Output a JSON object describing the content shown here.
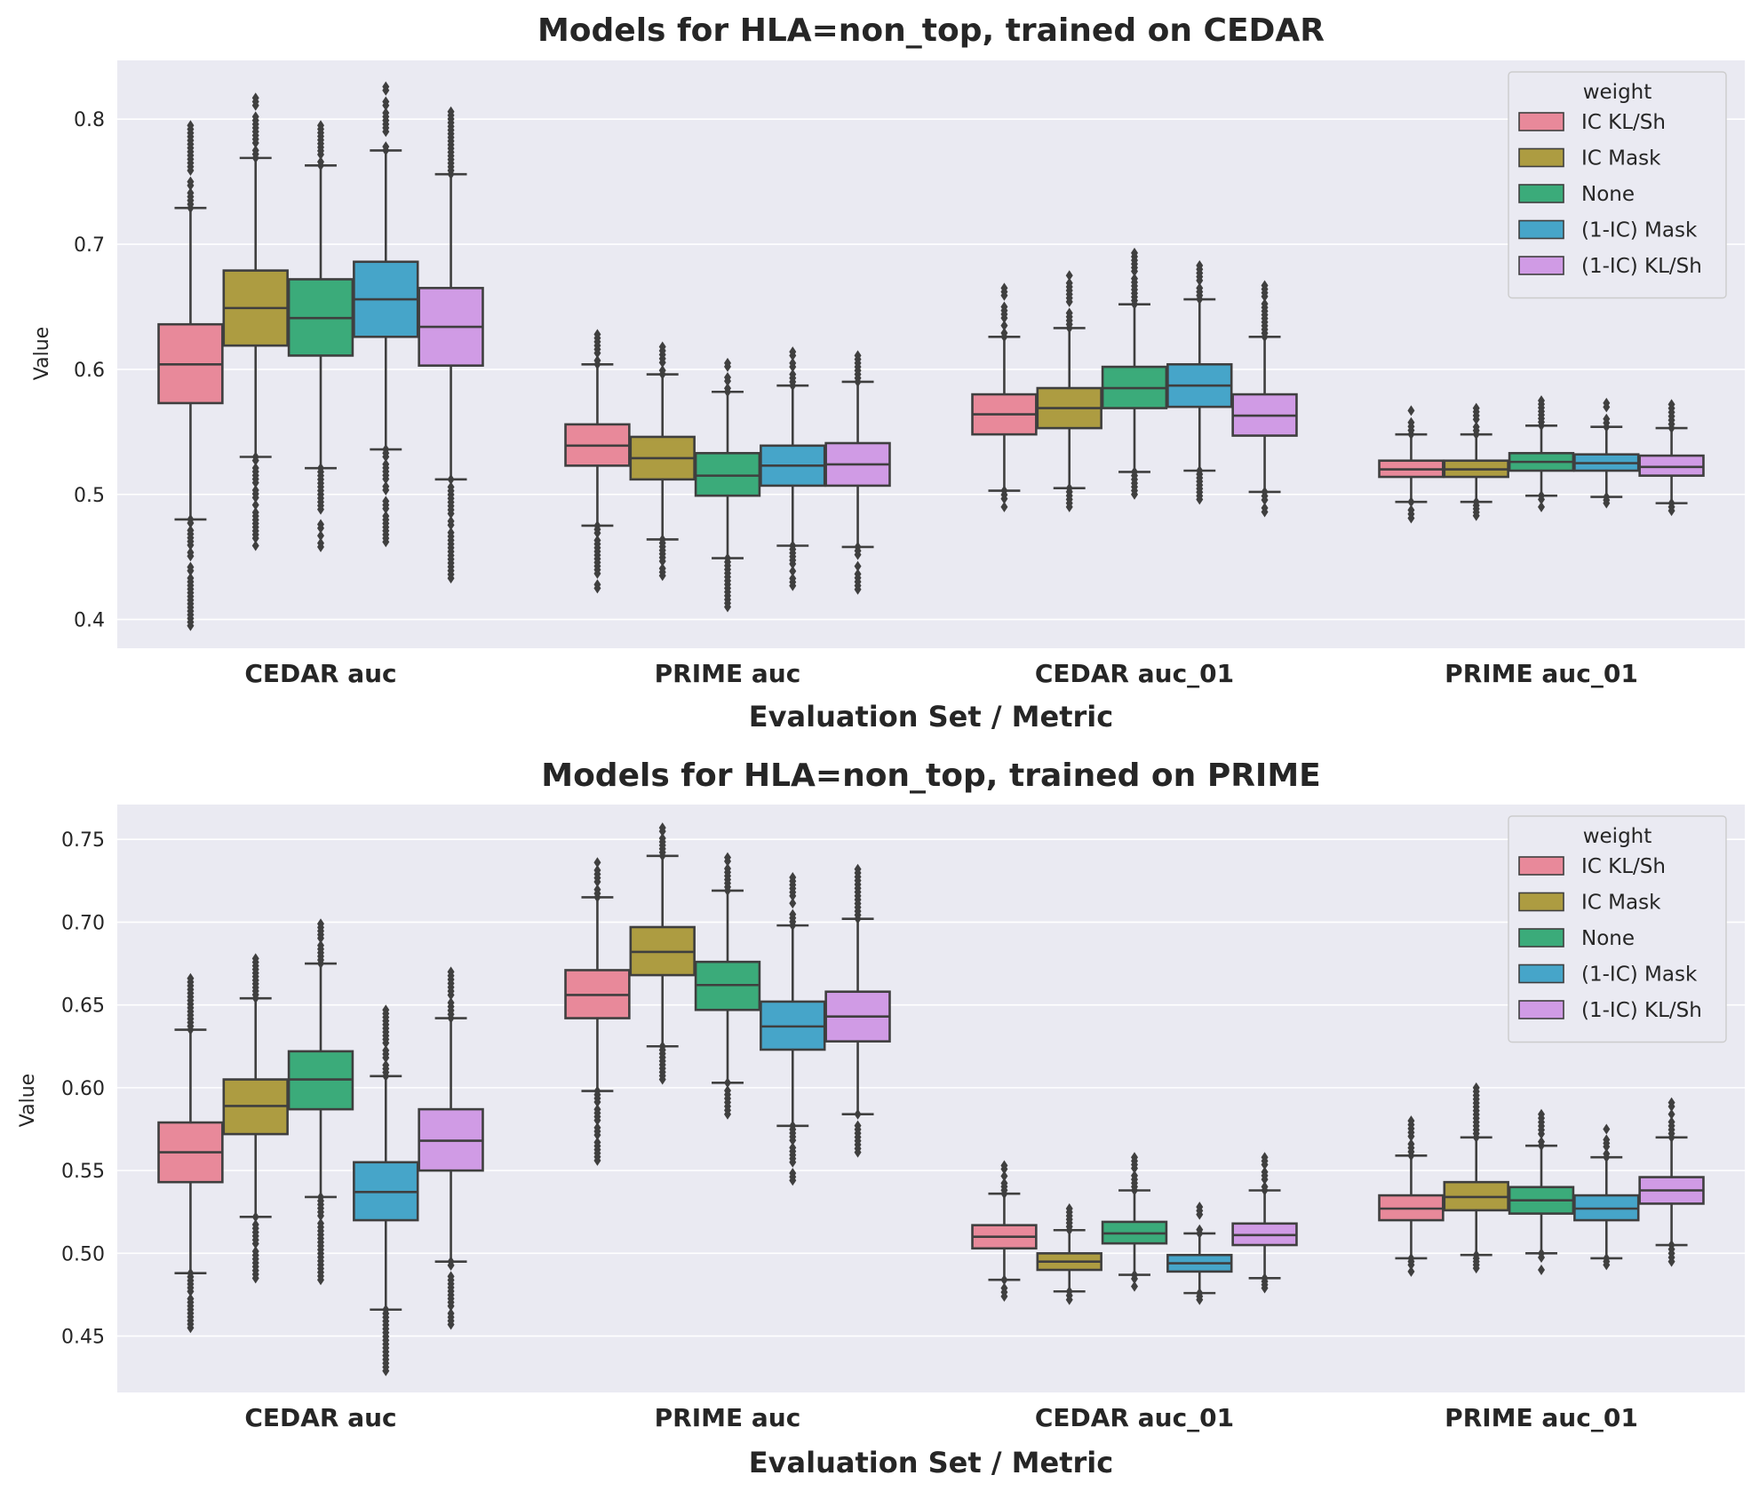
{
  "chart_data": [
    {
      "type": "box",
      "title": "Models for HLA=non_top, trained on CEDAR",
      "xlabel": "Evaluation Set / Metric",
      "ylabel": "Value",
      "ylim": [
        0.377,
        0.847
      ],
      "yticks": [
        0.4,
        0.5,
        0.6,
        0.7,
        0.8
      ],
      "ytick_labels": [
        "0.4",
        "0.5",
        "0.6",
        "0.7",
        "0.8"
      ],
      "grid": true,
      "categories": [
        "CEDAR auc",
        "PRIME auc",
        "CEDAR auc_01",
        "PRIME auc_01"
      ],
      "legend": {
        "title": "weight",
        "position": "top-right"
      },
      "series": [
        {
          "name": "IC KL/Sh",
          "color": "#e8899a",
          "boxes": [
            {
              "q1": 0.573,
              "median": 0.604,
              "q3": 0.636,
              "whisker_low": 0.48,
              "whisker_high": 0.729,
              "flier_min": 0.395,
              "flier_max": 0.795
            },
            {
              "q1": 0.523,
              "median": 0.539,
              "q3": 0.556,
              "whisker_low": 0.475,
              "whisker_high": 0.604,
              "flier_min": 0.425,
              "flier_max": 0.628
            },
            {
              "q1": 0.548,
              "median": 0.564,
              "q3": 0.58,
              "whisker_low": 0.503,
              "whisker_high": 0.626,
              "flier_min": 0.49,
              "flier_max": 0.665
            },
            {
              "q1": 0.514,
              "median": 0.52,
              "q3": 0.527,
              "whisker_low": 0.494,
              "whisker_high": 0.548,
              "flier_min": 0.481,
              "flier_max": 0.567
            }
          ]
        },
        {
          "name": "IC Mask",
          "color": "#ad9c41",
          "boxes": [
            {
              "q1": 0.619,
              "median": 0.649,
              "q3": 0.679,
              "whisker_low": 0.53,
              "whisker_high": 0.769,
              "flier_min": 0.459,
              "flier_max": 0.817
            },
            {
              "q1": 0.512,
              "median": 0.529,
              "q3": 0.546,
              "whisker_low": 0.464,
              "whisker_high": 0.596,
              "flier_min": 0.435,
              "flier_max": 0.618
            },
            {
              "q1": 0.553,
              "median": 0.569,
              "q3": 0.585,
              "whisker_low": 0.505,
              "whisker_high": 0.633,
              "flier_min": 0.49,
              "flier_max": 0.675
            },
            {
              "q1": 0.514,
              "median": 0.52,
              "q3": 0.527,
              "whisker_low": 0.494,
              "whisker_high": 0.548,
              "flier_min": 0.483,
              "flier_max": 0.569
            }
          ]
        },
        {
          "name": "None",
          "color": "#3bab7a",
          "boxes": [
            {
              "q1": 0.611,
              "median": 0.641,
              "q3": 0.672,
              "whisker_low": 0.521,
              "whisker_high": 0.763,
              "flier_min": 0.458,
              "flier_max": 0.795
            },
            {
              "q1": 0.499,
              "median": 0.515,
              "q3": 0.533,
              "whisker_low": 0.449,
              "whisker_high": 0.582,
              "flier_min": 0.41,
              "flier_max": 0.605
            },
            {
              "q1": 0.569,
              "median": 0.585,
              "q3": 0.602,
              "whisker_low": 0.518,
              "whisker_high": 0.652,
              "flier_min": 0.5,
              "flier_max": 0.693
            },
            {
              "q1": 0.519,
              "median": 0.526,
              "q3": 0.533,
              "whisker_low": 0.499,
              "whisker_high": 0.555,
              "flier_min": 0.49,
              "flier_max": 0.575
            }
          ]
        },
        {
          "name": "(1-IC) Mask",
          "color": "#46a5c9",
          "boxes": [
            {
              "q1": 0.626,
              "median": 0.656,
              "q3": 0.686,
              "whisker_low": 0.536,
              "whisker_high": 0.775,
              "flier_min": 0.462,
              "flier_max": 0.826
            },
            {
              "q1": 0.507,
              "median": 0.523,
              "q3": 0.539,
              "whisker_low": 0.459,
              "whisker_high": 0.587,
              "flier_min": 0.427,
              "flier_max": 0.614
            },
            {
              "q1": 0.57,
              "median": 0.587,
              "q3": 0.604,
              "whisker_low": 0.519,
              "whisker_high": 0.656,
              "flier_min": 0.496,
              "flier_max": 0.683
            },
            {
              "q1": 0.519,
              "median": 0.525,
              "q3": 0.532,
              "whisker_low": 0.498,
              "whisker_high": 0.554,
              "flier_min": 0.493,
              "flier_max": 0.573
            }
          ]
        },
        {
          "name": "(1-IC) KL/Sh",
          "color": "#d09be5",
          "boxes": [
            {
              "q1": 0.603,
              "median": 0.634,
              "q3": 0.665,
              "whisker_low": 0.512,
              "whisker_high": 0.756,
              "flier_min": 0.433,
              "flier_max": 0.806
            },
            {
              "q1": 0.507,
              "median": 0.524,
              "q3": 0.541,
              "whisker_low": 0.458,
              "whisker_high": 0.59,
              "flier_min": 0.424,
              "flier_max": 0.611
            },
            {
              "q1": 0.547,
              "median": 0.563,
              "q3": 0.58,
              "whisker_low": 0.502,
              "whisker_high": 0.626,
              "flier_min": 0.486,
              "flier_max": 0.667
            },
            {
              "q1": 0.515,
              "median": 0.522,
              "q3": 0.531,
              "whisker_low": 0.493,
              "whisker_high": 0.553,
              "flier_min": 0.487,
              "flier_max": 0.572
            }
          ]
        }
      ]
    },
    {
      "type": "box",
      "title": "Models for HLA=non_top, trained on PRIME",
      "xlabel": "Evaluation Set / Metric",
      "ylabel": "Value",
      "ylim": [
        0.416,
        0.771
      ],
      "yticks": [
        0.45,
        0.5,
        0.55,
        0.6,
        0.65,
        0.7,
        0.75
      ],
      "ytick_labels": [
        "0.45",
        "0.50",
        "0.55",
        "0.60",
        "0.65",
        "0.70",
        "0.75"
      ],
      "grid": true,
      "categories": [
        "CEDAR auc",
        "PRIME auc",
        "CEDAR auc_01",
        "PRIME auc_01"
      ],
      "legend": {
        "title": "weight",
        "position": "top-right"
      },
      "series": [
        {
          "name": "IC KL/Sh",
          "color": "#e8899a",
          "boxes": [
            {
              "q1": 0.543,
              "median": 0.561,
              "q3": 0.579,
              "whisker_low": 0.488,
              "whisker_high": 0.635,
              "flier_min": 0.455,
              "flier_max": 0.666
            },
            {
              "q1": 0.642,
              "median": 0.656,
              "q3": 0.671,
              "whisker_low": 0.598,
              "whisker_high": 0.715,
              "flier_min": 0.556,
              "flier_max": 0.736
            },
            {
              "q1": 0.503,
              "median": 0.51,
              "q3": 0.517,
              "whisker_low": 0.484,
              "whisker_high": 0.536,
              "flier_min": 0.474,
              "flier_max": 0.553
            },
            {
              "q1": 0.52,
              "median": 0.527,
              "q3": 0.535,
              "whisker_low": 0.497,
              "whisker_high": 0.559,
              "flier_min": 0.489,
              "flier_max": 0.58
            }
          ]
        },
        {
          "name": "IC Mask",
          "color": "#ad9c41",
          "boxes": [
            {
              "q1": 0.572,
              "median": 0.589,
              "q3": 0.605,
              "whisker_low": 0.522,
              "whisker_high": 0.654,
              "flier_min": 0.485,
              "flier_max": 0.678
            },
            {
              "q1": 0.668,
              "median": 0.682,
              "q3": 0.697,
              "whisker_low": 0.625,
              "whisker_high": 0.74,
              "flier_min": 0.605,
              "flier_max": 0.757
            },
            {
              "q1": 0.49,
              "median": 0.495,
              "q3": 0.5,
              "whisker_low": 0.477,
              "whisker_high": 0.514,
              "flier_min": 0.472,
              "flier_max": 0.527
            },
            {
              "q1": 0.526,
              "median": 0.534,
              "q3": 0.543,
              "whisker_low": 0.499,
              "whisker_high": 0.57,
              "flier_min": 0.491,
              "flier_max": 0.6
            }
          ]
        },
        {
          "name": "None",
          "color": "#3bab7a",
          "boxes": [
            {
              "q1": 0.587,
              "median": 0.605,
              "q3": 0.622,
              "whisker_low": 0.534,
              "whisker_high": 0.675,
              "flier_min": 0.484,
              "flier_max": 0.699
            },
            {
              "q1": 0.647,
              "median": 0.662,
              "q3": 0.676,
              "whisker_low": 0.603,
              "whisker_high": 0.719,
              "flier_min": 0.584,
              "flier_max": 0.739
            },
            {
              "q1": 0.506,
              "median": 0.512,
              "q3": 0.519,
              "whisker_low": 0.487,
              "whisker_high": 0.538,
              "flier_min": 0.48,
              "flier_max": 0.558
            },
            {
              "q1": 0.524,
              "median": 0.532,
              "q3": 0.54,
              "whisker_low": 0.5,
              "whisker_high": 0.565,
              "flier_min": 0.49,
              "flier_max": 0.584
            }
          ]
        },
        {
          "name": "(1-IC) Mask",
          "color": "#46a5c9",
          "boxes": [
            {
              "q1": 0.52,
              "median": 0.537,
              "q3": 0.555,
              "whisker_low": 0.466,
              "whisker_high": 0.607,
              "flier_min": 0.429,
              "flier_max": 0.647
            },
            {
              "q1": 0.623,
              "median": 0.637,
              "q3": 0.652,
              "whisker_low": 0.577,
              "whisker_high": 0.698,
              "flier_min": 0.544,
              "flier_max": 0.727
            },
            {
              "q1": 0.489,
              "median": 0.494,
              "q3": 0.499,
              "whisker_low": 0.476,
              "whisker_high": 0.512,
              "flier_min": 0.472,
              "flier_max": 0.528
            },
            {
              "q1": 0.52,
              "median": 0.527,
              "q3": 0.535,
              "whisker_low": 0.497,
              "whisker_high": 0.558,
              "flier_min": 0.493,
              "flier_max": 0.575
            }
          ]
        },
        {
          "name": "(1-IC) KL/Sh",
          "color": "#d09be5",
          "boxes": [
            {
              "q1": 0.55,
              "median": 0.568,
              "q3": 0.587,
              "whisker_low": 0.495,
              "whisker_high": 0.642,
              "flier_min": 0.457,
              "flier_max": 0.67
            },
            {
              "q1": 0.628,
              "median": 0.643,
              "q3": 0.658,
              "whisker_low": 0.584,
              "whisker_high": 0.702,
              "flier_min": 0.561,
              "flier_max": 0.732
            },
            {
              "q1": 0.505,
              "median": 0.511,
              "q3": 0.518,
              "whisker_low": 0.485,
              "whisker_high": 0.538,
              "flier_min": 0.479,
              "flier_max": 0.558
            },
            {
              "q1": 0.53,
              "median": 0.538,
              "q3": 0.546,
              "whisker_low": 0.505,
              "whisker_high": 0.57,
              "flier_min": 0.495,
              "flier_max": 0.591
            }
          ]
        }
      ]
    }
  ]
}
